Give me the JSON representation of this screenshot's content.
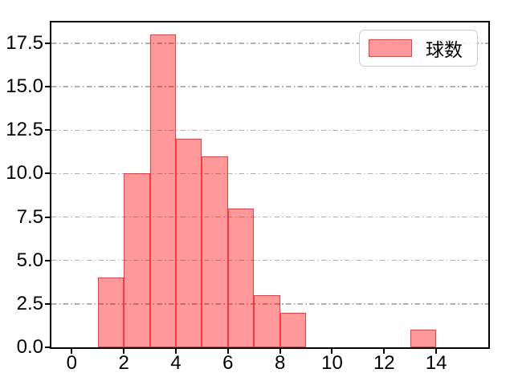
{
  "chart_data": {
    "type": "histogram",
    "title": "",
    "xlabel": "",
    "ylabel": "",
    "legend": [
      "球数"
    ],
    "legend_location": "upper right",
    "grid": {
      "axis": "y",
      "linestyle": "dash-dot",
      "color": "#b0b0b0"
    },
    "xlim": [
      -0.78,
      16.0
    ],
    "ylim": [
      0,
      18.7
    ],
    "xticks": [
      {
        "label": "0",
        "value": 0
      },
      {
        "label": "2",
        "value": 2
      },
      {
        "label": "4",
        "value": 4
      },
      {
        "label": "6",
        "value": 6
      },
      {
        "label": "8",
        "value": 8
      },
      {
        "label": "10",
        "value": 10
      },
      {
        "label": "12",
        "value": 12
      },
      {
        "label": "14",
        "value": 14
      }
    ],
    "yticks": [
      {
        "label": "0.0",
        "value": 0
      },
      {
        "label": "2.5",
        "value": 2.5
      },
      {
        "label": "5.0",
        "value": 5
      },
      {
        "label": "7.5",
        "value": 7.5
      },
      {
        "label": "10.0",
        "value": 10
      },
      {
        "label": "12.5",
        "value": 12.5
      },
      {
        "label": "15.0",
        "value": 15
      },
      {
        "label": "17.5",
        "value": 17.5
      }
    ],
    "bins": [
      {
        "x0": 1,
        "x1": 2,
        "count": 4
      },
      {
        "x0": 2,
        "x1": 3,
        "count": 10
      },
      {
        "x0": 3,
        "x1": 4,
        "count": 18
      },
      {
        "x0": 4,
        "x1": 5,
        "count": 12
      },
      {
        "x0": 5,
        "x1": 6,
        "count": 11
      },
      {
        "x0": 6,
        "x1": 7,
        "count": 8
      },
      {
        "x0": 7,
        "x1": 8,
        "count": 3
      },
      {
        "x0": 8,
        "x1": 9,
        "count": 2
      },
      {
        "x0": 13,
        "x1": 14,
        "count": 1
      }
    ],
    "colors": {
      "bar_fill": "rgba(255,0,0,0.40)",
      "bar_fill_on_white_hex": "#ff9999",
      "bar_edge": "rgba(242,32,45,0.80)",
      "spine": "#000000",
      "tick_label": "#000000",
      "gridline": "#b0b0b0",
      "legend_border": "#cccccc",
      "legend_background": "rgba(255,255,255,0.85)"
    }
  }
}
